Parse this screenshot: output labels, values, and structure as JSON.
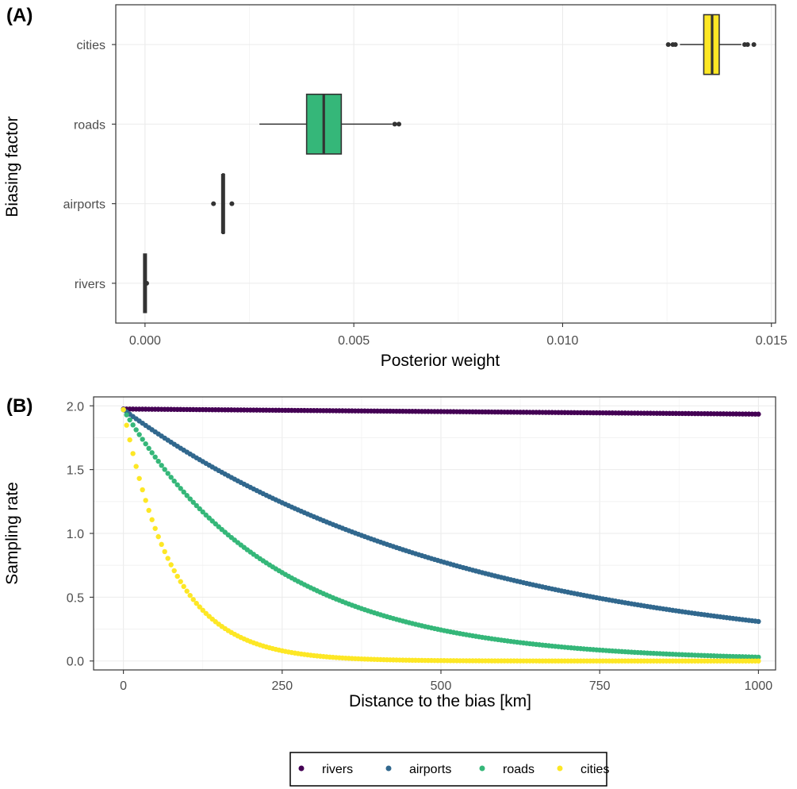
{
  "chart_data": [
    {
      "panel_label": "(A)",
      "type": "boxplot",
      "orientation": "horizontal",
      "title": "",
      "xlabel": "Posterior weight",
      "ylabel": "Biasing factor",
      "xlim": [
        -0.0007,
        0.0151
      ],
      "x_ticks": [
        0.0,
        0.005,
        0.01,
        0.015
      ],
      "x_tick_labels": [
        "0.000",
        "0.005",
        "0.010",
        "0.015"
      ],
      "categories": [
        "rivers",
        "airports",
        "roads",
        "cities"
      ],
      "grid": true,
      "boxes": [
        {
          "category": "rivers",
          "color": "#440154",
          "whisker_low": 0.0,
          "q1": 0.0,
          "median": 0.0,
          "q3": 0.0,
          "whisker_high": 0.0,
          "outliers": [
            4e-05
          ]
        },
        {
          "category": "airports",
          "color": "#31688E",
          "whisker_low": 0.00184,
          "q1": 0.00186,
          "median": 0.00187,
          "q3": 0.00189,
          "whisker_high": 0.0019,
          "outliers": [
            0.00164,
            0.00208
          ]
        },
        {
          "category": "roads",
          "color": "#35B779",
          "whisker_low": 0.00274,
          "q1": 0.00387,
          "median": 0.00428,
          "q3": 0.0047,
          "whisker_high": 0.00592,
          "outliers": [
            0.00598,
            0.00608
          ]
        },
        {
          "category": "cities",
          "color": "#FDE725",
          "whisker_low": 0.01281,
          "q1": 0.01338,
          "median": 0.01358,
          "q3": 0.01375,
          "whisker_high": 0.01428,
          "outliers": [
            0.01253,
            0.01264,
            0.0127,
            0.01436,
            0.01443,
            0.01458
          ]
        }
      ]
    },
    {
      "panel_label": "(B)",
      "type": "scatter",
      "title": "",
      "xlabel": "Distance to the bias [km]",
      "ylabel": "Sampling rate",
      "xlim": [
        -47,
        1027
      ],
      "ylim": [
        -0.07,
        2.07
      ],
      "x_ticks": [
        0,
        250,
        500,
        750,
        1000
      ],
      "x_tick_labels": [
        "0",
        "250",
        "500",
        "750",
        "1000"
      ],
      "y_ticks": [
        0.0,
        0.5,
        1.0,
        1.5,
        2.0
      ],
      "y_tick_labels": [
        "0.0",
        "0.5",
        "1.0",
        "1.5",
        "2.0"
      ],
      "grid": true,
      "x_step": 5,
      "x_range": [
        0,
        1000
      ],
      "series": [
        {
          "name": "rivers",
          "color": "#440154",
          "model": "exponential decay",
          "start": 1.975,
          "rate_per_km": 2.05e-05
        },
        {
          "name": "airports",
          "color": "#31688E",
          "model": "exponential decay",
          "start": 1.97,
          "rate_per_km": 0.00185
        },
        {
          "name": "roads",
          "color": "#35B779",
          "model": "exponential decay",
          "start": 1.97,
          "rate_per_km": 0.00418
        },
        {
          "name": "cities",
          "color": "#FDE725",
          "model": "exponential decay",
          "start": 1.97,
          "rate_per_km": 0.0128
        }
      ],
      "legend": {
        "position": "bottom",
        "entries": [
          {
            "label": "rivers",
            "color": "#440154"
          },
          {
            "label": "airports",
            "color": "#31688E"
          },
          {
            "label": "roads",
            "color": "#35B779"
          },
          {
            "label": "cities",
            "color": "#FDE725"
          }
        ]
      }
    }
  ]
}
